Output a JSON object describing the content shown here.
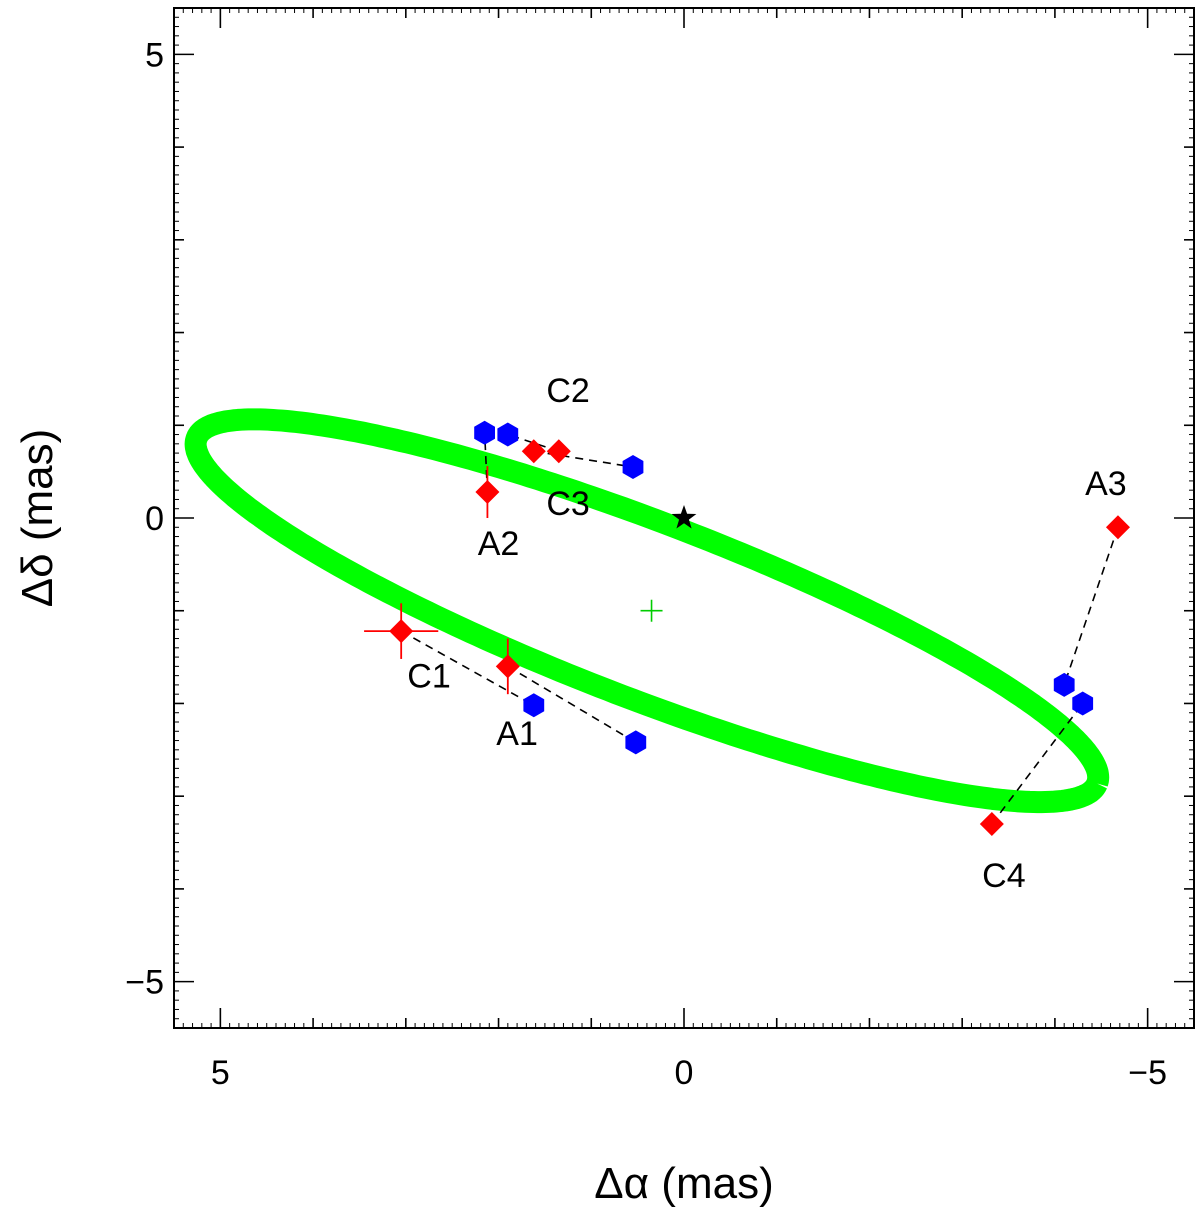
{
  "chart_data": {
    "type": "scatter",
    "title": "",
    "xlabel": "Δα (mas)",
    "ylabel": "Δδ (mas)",
    "xlim": [
      5.5,
      -5.5
    ],
    "ylim": [
      -5.5,
      5.5
    ],
    "x_reversed": true,
    "grid": false,
    "legend": "none",
    "x_major_ticks": [
      5,
      0,
      -5
    ],
    "y_major_ticks": [
      5,
      0,
      -5
    ],
    "x_tick_labels": [
      "5",
      "0",
      "−5"
    ],
    "y_tick_labels": [
      "5",
      "0",
      "−5"
    ],
    "minor_tick_step": 1,
    "colors": {
      "orbit": "#00ff00",
      "measured": "#ff0000",
      "predicted": "#0000ff",
      "star": "#000000",
      "center": "#00cc00",
      "connector": "#000000"
    },
    "orbit": {
      "center": [
        0.4,
        -1.0
      ],
      "semi_major": 5.2,
      "semi_minor": 0.95,
      "angle_deg": -21
    },
    "star": {
      "x": 0.0,
      "y": 0.0
    },
    "center_marker": {
      "x": 0.35,
      "y": -1.0
    },
    "points": [
      {
        "label": "C1",
        "x": 3.05,
        "y": -1.22,
        "xerr": 0.4,
        "yerr": 0.3,
        "model": [
          1.62,
          -2.02
        ],
        "label_pos": [
          2.75,
          -1.83
        ]
      },
      {
        "label": "A1",
        "x": 1.9,
        "y": -1.6,
        "xerr": 0.1,
        "yerr": 0.3,
        "model": [
          0.52,
          -2.42
        ],
        "label_pos": [
          1.8,
          -2.45
        ]
      },
      {
        "label": "C2",
        "x": 1.62,
        "y": 0.72,
        "xerr": 0.0,
        "yerr": 0.0,
        "model": [
          0.55,
          0.55
        ],
        "label_pos": [
          1.25,
          1.25
        ]
      },
      {
        "label": "C3",
        "x": 1.35,
        "y": 0.72,
        "xerr": 0.0,
        "yerr": 0.0,
        "model": [
          1.9,
          0.9
        ],
        "label_pos": [
          1.25,
          0.03
        ]
      },
      {
        "label": "A2",
        "x": 2.12,
        "y": 0.28,
        "xerr": 0.0,
        "yerr": 0.28,
        "model": [
          2.15,
          0.92
        ],
        "label_pos": [
          2.0,
          -0.4
        ]
      },
      {
        "label": "A3",
        "x": -4.68,
        "y": -0.1,
        "xerr": 0.0,
        "yerr": 0.0,
        "model": [
          -4.1,
          -1.8
        ],
        "label_pos": [
          -4.55,
          0.25
        ]
      },
      {
        "label": "C4",
        "x": -3.32,
        "y": -3.3,
        "xerr": 0.0,
        "yerr": 0.0,
        "model": [
          -4.3,
          -2.0
        ],
        "label_pos": [
          -3.45,
          -3.98
        ]
      }
    ]
  }
}
